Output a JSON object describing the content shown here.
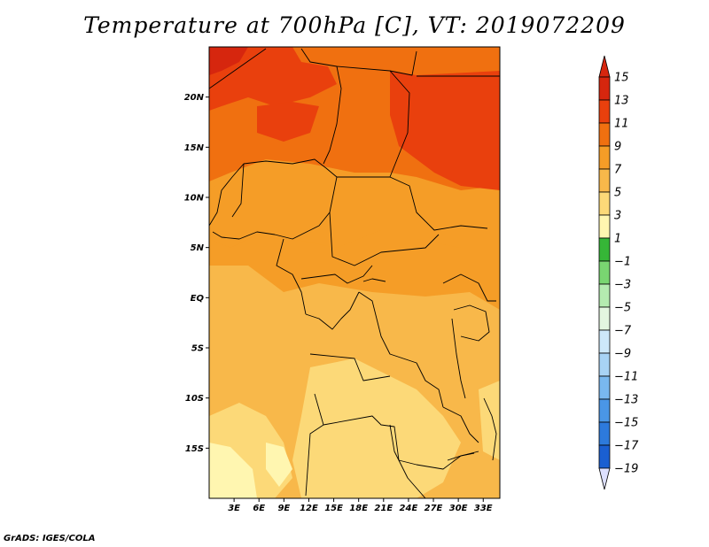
{
  "title": "Temperature at 700hPa [C], VT: 2019072209",
  "credit": "GrADS: IGES/COLA",
  "colors": {
    "c15": "#d6260e",
    "c13": "#e9400d",
    "c11": "#f07010",
    "c9": "#f59d27",
    "c7": "#f8b84a",
    "c5": "#fcd978",
    "c3": "#fff6b0",
    "c1": "#36b637",
    "cm1": "#79d671",
    "cm3": "#b4ebb0",
    "cm5": "#e3f6e0",
    "cm7": "#cde8fa",
    "cm9": "#a8d3f5",
    "cm11": "#79b8ef",
    "cm13": "#4a96e6",
    "cm15": "#2d7adc",
    "cm17": "#1a5fd1",
    "cm19": "#0d44b8",
    "under": "#0a1f7a",
    "low": "#dde0ff"
  },
  "map": {
    "lon_range": [
      0,
      35
    ],
    "lat_range": [
      -20,
      25
    ],
    "lat_ticks": [
      {
        "value": 20,
        "label": "20N"
      },
      {
        "value": 15,
        "label": "15N"
      },
      {
        "value": 10,
        "label": "10N"
      },
      {
        "value": 5,
        "label": "5N"
      },
      {
        "value": 0,
        "label": "EQ"
      },
      {
        "value": -5,
        "label": "5S"
      },
      {
        "value": -10,
        "label": "10S"
      },
      {
        "value": -15,
        "label": "15S"
      }
    ],
    "lon_ticks": [
      {
        "value": 3,
        "label": "3E"
      },
      {
        "value": 6,
        "label": "6E"
      },
      {
        "value": 9,
        "label": "9E"
      },
      {
        "value": 12,
        "label": "12E"
      },
      {
        "value": 15,
        "label": "15E"
      },
      {
        "value": 18,
        "label": "18E"
      },
      {
        "value": 21,
        "label": "21E"
      },
      {
        "value": 24,
        "label": "24E"
      },
      {
        "value": 27,
        "label": "27E"
      },
      {
        "value": 30,
        "label": "30E"
      },
      {
        "value": 33,
        "label": "33E"
      }
    ]
  },
  "colorbar": {
    "labels": [
      "15",
      "13",
      "11",
      "9",
      "7",
      "5",
      "3",
      "1",
      "−1",
      "−3",
      "−5",
      "−7",
      "−9",
      "−11",
      "−13",
      "−15",
      "−17",
      "−19"
    ]
  }
}
